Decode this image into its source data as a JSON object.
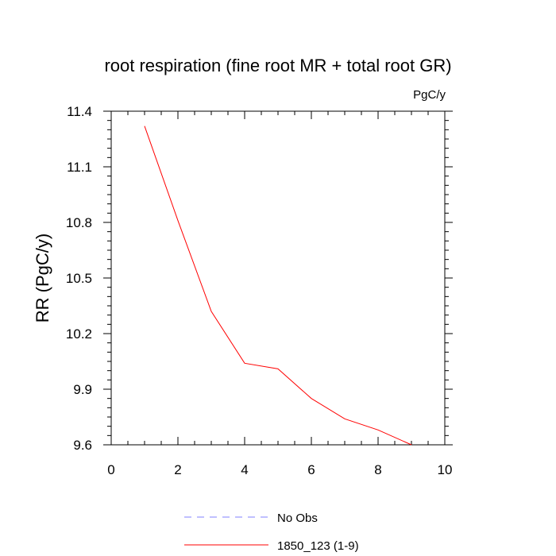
{
  "chart_data": {
    "type": "line",
    "title": "root respiration (fine root MR + total root GR)",
    "units": "PgC/y",
    "xlabel": "",
    "ylabel": "RR  (PgC/y)",
    "xlim": [
      0,
      10
    ],
    "ylim": [
      9.6,
      11.4
    ],
    "x_ticks": [
      0,
      2,
      4,
      6,
      8,
      10
    ],
    "x_tick_labels": [
      "0",
      "2",
      "4",
      "6",
      "8",
      "10"
    ],
    "y_ticks": [
      9.6,
      9.9,
      10.2,
      10.5,
      10.8,
      11.1,
      11.4
    ],
    "y_tick_labels": [
      "9.6",
      "9.9",
      "10.2",
      "10.5",
      "10.8",
      "11.1",
      "11.4"
    ],
    "grid": false,
    "series": [
      {
        "name": "1850_123 (1-9)",
        "color": "#ff0000",
        "dash": "solid",
        "x": [
          1,
          2,
          3,
          4,
          5,
          6,
          7,
          8,
          9
        ],
        "values": [
          11.32,
          10.81,
          10.32,
          10.04,
          10.01,
          9.85,
          9.74,
          9.68,
          9.6
        ]
      }
    ],
    "legend": {
      "placement": "bottom",
      "entries": [
        {
          "label": "No Obs",
          "color": "#8080ff",
          "dash": "dashed"
        },
        {
          "label": "1850_123 (1-9)",
          "color": "#ff0000",
          "dash": "solid"
        }
      ]
    }
  }
}
